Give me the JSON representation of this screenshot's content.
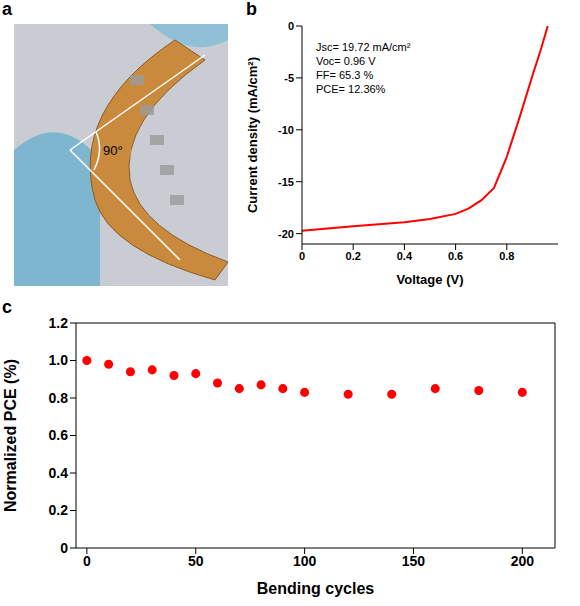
{
  "chart_data": [
    {
      "type": "image",
      "panel": "a",
      "annotations": [
        "90°"
      ]
    },
    {
      "type": "line",
      "panel": "b",
      "x": [
        0,
        0.1,
        0.2,
        0.3,
        0.4,
        0.5,
        0.6,
        0.65,
        0.7,
        0.75,
        0.8,
        0.85,
        0.9,
        0.93,
        0.96
      ],
      "values": [
        -19.72,
        -19.5,
        -19.3,
        -19.1,
        -18.9,
        -18.6,
        -18.1,
        -17.6,
        -16.8,
        -15.6,
        -12.6,
        -8.8,
        -4.8,
        -2.5,
        0
      ],
      "color": "#ff0000",
      "line_style": "solid",
      "xlabel": "Voltage (V)",
      "ylabel": "Current density (mA/cm²)",
      "xlim": [
        0,
        1
      ],
      "xticks": [
        0,
        0.2,
        0.4,
        0.6,
        0.8
      ],
      "ylim": [
        -21,
        0
      ],
      "yticks": [
        -20,
        -15,
        -10,
        -5,
        0
      ],
      "annotations": [
        "Jsc= 19.72 mA/cm²",
        "Voc= 0.96 V",
        "FF= 65.3 %",
        "PCE= 12.36%"
      ],
      "grid": false
    },
    {
      "type": "scatter",
      "panel": "c",
      "x": [
        0,
        10,
        20,
        30,
        40,
        50,
        60,
        70,
        80,
        90,
        100,
        120,
        140,
        160,
        180,
        200
      ],
      "values": [
        1.0,
        0.98,
        0.94,
        0.95,
        0.92,
        0.93,
        0.88,
        0.85,
        0.87,
        0.85,
        0.83,
        0.82,
        0.82,
        0.85,
        0.84,
        0.83
      ],
      "color": "#ff0000",
      "marker": "circle",
      "xlabel": "Bending cycles",
      "ylabel": "Normalized PCE (%)",
      "xlim": [
        -5,
        215
      ],
      "xticks": [
        0,
        50,
        100,
        150,
        200
      ],
      "ylim": [
        0,
        1.2
      ],
      "yticks": [
        0,
        0.2,
        0.4,
        0.6,
        0.8,
        {
          "value": 1,
          "label": "1.0"
        },
        1.2
      ],
      "grid": false
    }
  ]
}
